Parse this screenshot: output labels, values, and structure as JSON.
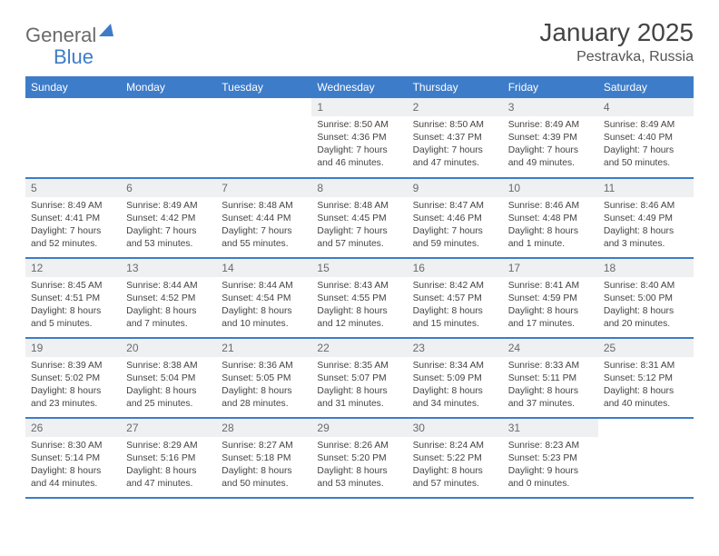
{
  "logo": {
    "word1": "General",
    "word2": "Blue"
  },
  "title": "January 2025",
  "location": "Pestravka, Russia",
  "colors": {
    "header_bg": "#3d7cc9",
    "header_text": "#ffffff",
    "daynum_bg": "#eef0f1",
    "daynum_text": "#6a6a6a",
    "body_text": "#444444",
    "rule": "#3d7cc9",
    "page_bg": "#ffffff"
  },
  "day_headers": [
    "Sunday",
    "Monday",
    "Tuesday",
    "Wednesday",
    "Thursday",
    "Friday",
    "Saturday"
  ],
  "weeks": [
    [
      null,
      null,
      null,
      {
        "n": "1",
        "sr": "8:50 AM",
        "ss": "4:36 PM",
        "dl": "7 hours and 46 minutes."
      },
      {
        "n": "2",
        "sr": "8:50 AM",
        "ss": "4:37 PM",
        "dl": "7 hours and 47 minutes."
      },
      {
        "n": "3",
        "sr": "8:49 AM",
        "ss": "4:39 PM",
        "dl": "7 hours and 49 minutes."
      },
      {
        "n": "4",
        "sr": "8:49 AM",
        "ss": "4:40 PM",
        "dl": "7 hours and 50 minutes."
      }
    ],
    [
      {
        "n": "5",
        "sr": "8:49 AM",
        "ss": "4:41 PM",
        "dl": "7 hours and 52 minutes."
      },
      {
        "n": "6",
        "sr": "8:49 AM",
        "ss": "4:42 PM",
        "dl": "7 hours and 53 minutes."
      },
      {
        "n": "7",
        "sr": "8:48 AM",
        "ss": "4:44 PM",
        "dl": "7 hours and 55 minutes."
      },
      {
        "n": "8",
        "sr": "8:48 AM",
        "ss": "4:45 PM",
        "dl": "7 hours and 57 minutes."
      },
      {
        "n": "9",
        "sr": "8:47 AM",
        "ss": "4:46 PM",
        "dl": "7 hours and 59 minutes."
      },
      {
        "n": "10",
        "sr": "8:46 AM",
        "ss": "4:48 PM",
        "dl": "8 hours and 1 minute."
      },
      {
        "n": "11",
        "sr": "8:46 AM",
        "ss": "4:49 PM",
        "dl": "8 hours and 3 minutes."
      }
    ],
    [
      {
        "n": "12",
        "sr": "8:45 AM",
        "ss": "4:51 PM",
        "dl": "8 hours and 5 minutes."
      },
      {
        "n": "13",
        "sr": "8:44 AM",
        "ss": "4:52 PM",
        "dl": "8 hours and 7 minutes."
      },
      {
        "n": "14",
        "sr": "8:44 AM",
        "ss": "4:54 PM",
        "dl": "8 hours and 10 minutes."
      },
      {
        "n": "15",
        "sr": "8:43 AM",
        "ss": "4:55 PM",
        "dl": "8 hours and 12 minutes."
      },
      {
        "n": "16",
        "sr": "8:42 AM",
        "ss": "4:57 PM",
        "dl": "8 hours and 15 minutes."
      },
      {
        "n": "17",
        "sr": "8:41 AM",
        "ss": "4:59 PM",
        "dl": "8 hours and 17 minutes."
      },
      {
        "n": "18",
        "sr": "8:40 AM",
        "ss": "5:00 PM",
        "dl": "8 hours and 20 minutes."
      }
    ],
    [
      {
        "n": "19",
        "sr": "8:39 AM",
        "ss": "5:02 PM",
        "dl": "8 hours and 23 minutes."
      },
      {
        "n": "20",
        "sr": "8:38 AM",
        "ss": "5:04 PM",
        "dl": "8 hours and 25 minutes."
      },
      {
        "n": "21",
        "sr": "8:36 AM",
        "ss": "5:05 PM",
        "dl": "8 hours and 28 minutes."
      },
      {
        "n": "22",
        "sr": "8:35 AM",
        "ss": "5:07 PM",
        "dl": "8 hours and 31 minutes."
      },
      {
        "n": "23",
        "sr": "8:34 AM",
        "ss": "5:09 PM",
        "dl": "8 hours and 34 minutes."
      },
      {
        "n": "24",
        "sr": "8:33 AM",
        "ss": "5:11 PM",
        "dl": "8 hours and 37 minutes."
      },
      {
        "n": "25",
        "sr": "8:31 AM",
        "ss": "5:12 PM",
        "dl": "8 hours and 40 minutes."
      }
    ],
    [
      {
        "n": "26",
        "sr": "8:30 AM",
        "ss": "5:14 PM",
        "dl": "8 hours and 44 minutes."
      },
      {
        "n": "27",
        "sr": "8:29 AM",
        "ss": "5:16 PM",
        "dl": "8 hours and 47 minutes."
      },
      {
        "n": "28",
        "sr": "8:27 AM",
        "ss": "5:18 PM",
        "dl": "8 hours and 50 minutes."
      },
      {
        "n": "29",
        "sr": "8:26 AM",
        "ss": "5:20 PM",
        "dl": "8 hours and 53 minutes."
      },
      {
        "n": "30",
        "sr": "8:24 AM",
        "ss": "5:22 PM",
        "dl": "8 hours and 57 minutes."
      },
      {
        "n": "31",
        "sr": "8:23 AM",
        "ss": "5:23 PM",
        "dl": "9 hours and 0 minutes."
      },
      null
    ]
  ],
  "labels": {
    "sunrise": "Sunrise:",
    "sunset": "Sunset:",
    "daylight": "Daylight:"
  }
}
